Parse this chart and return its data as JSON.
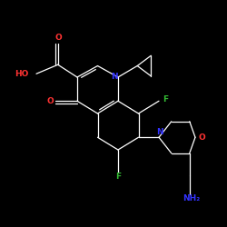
{
  "background_color": "#000000",
  "bond_color": "#ffffff",
  "atom_colors": {
    "O": "#ff3333",
    "N": "#3333ff",
    "F": "#33bb33",
    "HO": "#ff3333",
    "NH2": "#3333ff"
  },
  "figsize": [
    2.5,
    2.5
  ],
  "dpi": 100,
  "lw": 0.9,
  "fontsize": 6.5
}
